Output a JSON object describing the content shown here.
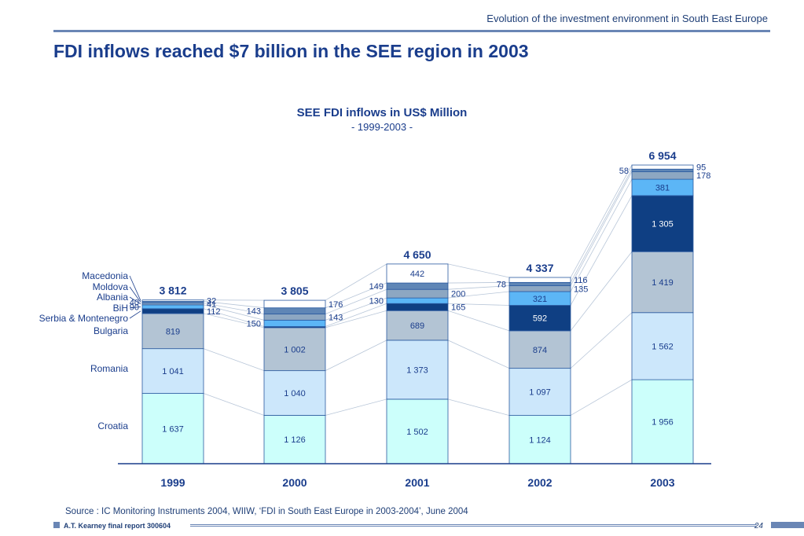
{
  "header": {
    "text": "Evolution of the investment environment in South East Europe"
  },
  "slide_title": "FDI inflows reached $7 billion in the SEE region in 2003",
  "chart_data": {
    "type": "bar",
    "stacked": true,
    "title": "SEE FDI inflows in US$ Million",
    "subtitle": "- 1999-2003 -",
    "categories": [
      "1999",
      "2000",
      "2001",
      "2002",
      "2003"
    ],
    "totals": [
      "3 812",
      "3 805",
      "4 650",
      "4 337",
      "6 954"
    ],
    "series": [
      {
        "name": "Croatia",
        "values": [
          1637,
          1126,
          1502,
          1124,
          1956
        ],
        "labels": [
          "1 637",
          "1 126",
          "1 502",
          "1 124",
          "1 956"
        ],
        "color": "#ccfffb"
      },
      {
        "name": "Romania",
        "values": [
          1041,
          1040,
          1373,
          1097,
          1562
        ],
        "labels": [
          "1 041",
          "1 040",
          "1 373",
          "1 097",
          "1 562"
        ],
        "color": "#cce7fb"
      },
      {
        "name": "Bulgaria",
        "values": [
          819,
          1002,
          689,
          874,
          1419
        ],
        "labels": [
          "819",
          "1 002",
          "689",
          "874",
          "1 419"
        ],
        "color": "#b3c4d4"
      },
      {
        "name": "Serbia & Montenegro",
        "values": [
          112,
          25,
          165,
          592,
          1305
        ],
        "labels": [
          "112",
          "",
          "165",
          "592",
          "1 305"
        ],
        "color": "#0f3f83"
      },
      {
        "name": "BiH",
        "values": [
          90,
          150,
          130,
          321,
          381
        ],
        "labels": [
          "90",
          "150",
          "130",
          "321",
          "381"
        ],
        "color": "#5cb6f6"
      },
      {
        "name": "Albania",
        "values": [
          41,
          143,
          200,
          135,
          178
        ],
        "labels": [
          "41",
          "143",
          "200",
          "135",
          "178"
        ],
        "color": "#8da7c2"
      },
      {
        "name": "Moldova",
        "values": [
          40,
          143,
          149,
          78,
          58
        ],
        "labels": [
          "40",
          "143",
          "149",
          "78",
          "58"
        ],
        "color": "#5f86b6"
      },
      {
        "name": "Macedonia",
        "values": [
          32,
          176,
          442,
          116,
          95
        ],
        "labels": [
          "32",
          "176",
          "442",
          "116",
          "95"
        ],
        "color": "#ffffff"
      }
    ],
    "legend_placement": "left, aligned with first bar",
    "grid": false
  },
  "source": "Source : IC Monitoring Instruments 2004, WIIW, ‘FDI in South East Europe in 2003-2004’, June 2004",
  "footer": {
    "label": "A.T. Kearney final report 300604",
    "page": "24"
  }
}
